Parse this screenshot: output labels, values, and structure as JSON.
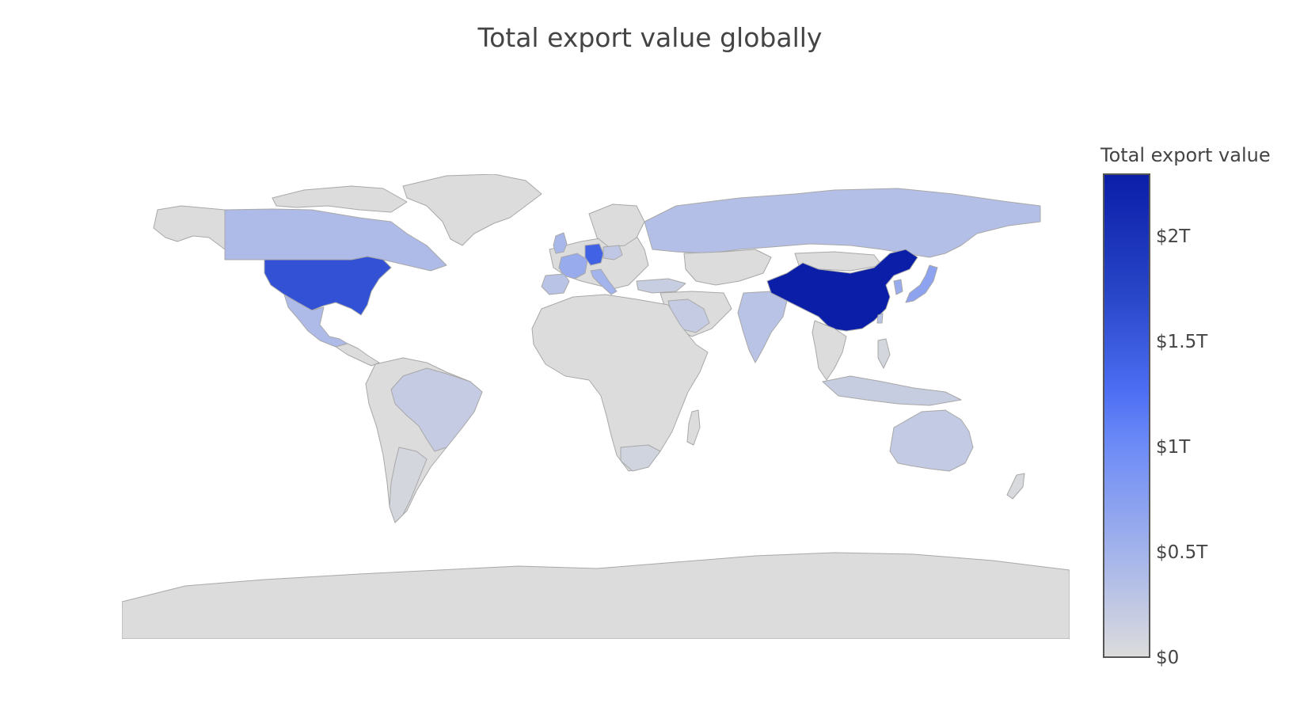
{
  "title": "Total export value globally",
  "colorbar": {
    "title": "Total export value",
    "min": 0,
    "max": 2.3,
    "unit": "T",
    "ticks": [
      {
        "label": "$0",
        "value": 0
      },
      {
        "label": "$0.5T",
        "value": 0.5
      },
      {
        "label": "$1T",
        "value": 1
      },
      {
        "label": "$1.5T",
        "value": 1.5
      },
      {
        "label": "$2T",
        "value": 2
      }
    ],
    "colorscale": [
      [
        0,
        "#dcdcdc"
      ],
      [
        0.2,
        "#a7b6ea"
      ],
      [
        0.45,
        "#6a89f7"
      ],
      [
        0.55,
        "#4d6ef3"
      ],
      [
        0.75,
        "#2846c8"
      ],
      [
        1,
        "#0b1ea8"
      ]
    ]
  },
  "chart_data": {
    "type": "choropleth",
    "projection": "equirectangular",
    "value_unit": "trillion USD",
    "background_color": "#dcdcdc",
    "border_color": "#a8a8a8",
    "regions": [
      {
        "name": "China",
        "value": 2.3
      },
      {
        "name": "United States",
        "value": 1.6
      },
      {
        "name": "Germany",
        "value": 1.4
      },
      {
        "name": "Japan",
        "value": 0.7
      },
      {
        "name": "South Korea",
        "value": 0.6
      },
      {
        "name": "France",
        "value": 0.6
      },
      {
        "name": "Netherlands",
        "value": 0.55
      },
      {
        "name": "United Kingdom",
        "value": 0.45
      },
      {
        "name": "Italy",
        "value": 0.5
      },
      {
        "name": "Canada",
        "value": 0.4
      },
      {
        "name": "Mexico",
        "value": 0.4
      },
      {
        "name": "Spain",
        "value": 0.3
      },
      {
        "name": "Russia",
        "value": 0.35
      },
      {
        "name": "India",
        "value": 0.3
      },
      {
        "name": "Switzerland",
        "value": 0.3
      },
      {
        "name": "Poland",
        "value": 0.25
      },
      {
        "name": "Singapore",
        "value": 0.4
      },
      {
        "name": "Taiwan",
        "value": 0.3
      },
      {
        "name": "Malaysia",
        "value": 0.22
      },
      {
        "name": "Thailand",
        "value": 0.22
      },
      {
        "name": "Vietnam",
        "value": 0.22
      },
      {
        "name": "Australia",
        "value": 0.22
      },
      {
        "name": "Brazil",
        "value": 0.2
      },
      {
        "name": "Indonesia",
        "value": 0.18
      },
      {
        "name": "Saudi Arabia",
        "value": 0.2
      },
      {
        "name": "Sweden",
        "value": 0.18
      },
      {
        "name": "Norway",
        "value": 0.15
      },
      {
        "name": "Turkey",
        "value": 0.17
      },
      {
        "name": "South Africa",
        "value": 0.1
      },
      {
        "name": "Philippines",
        "value": 0.07
      },
      {
        "name": "Argentina",
        "value": 0.07
      },
      {
        "name": "Finland",
        "value": 0.08
      },
      {
        "name": "New Zealand",
        "value": 0.04
      }
    ]
  }
}
